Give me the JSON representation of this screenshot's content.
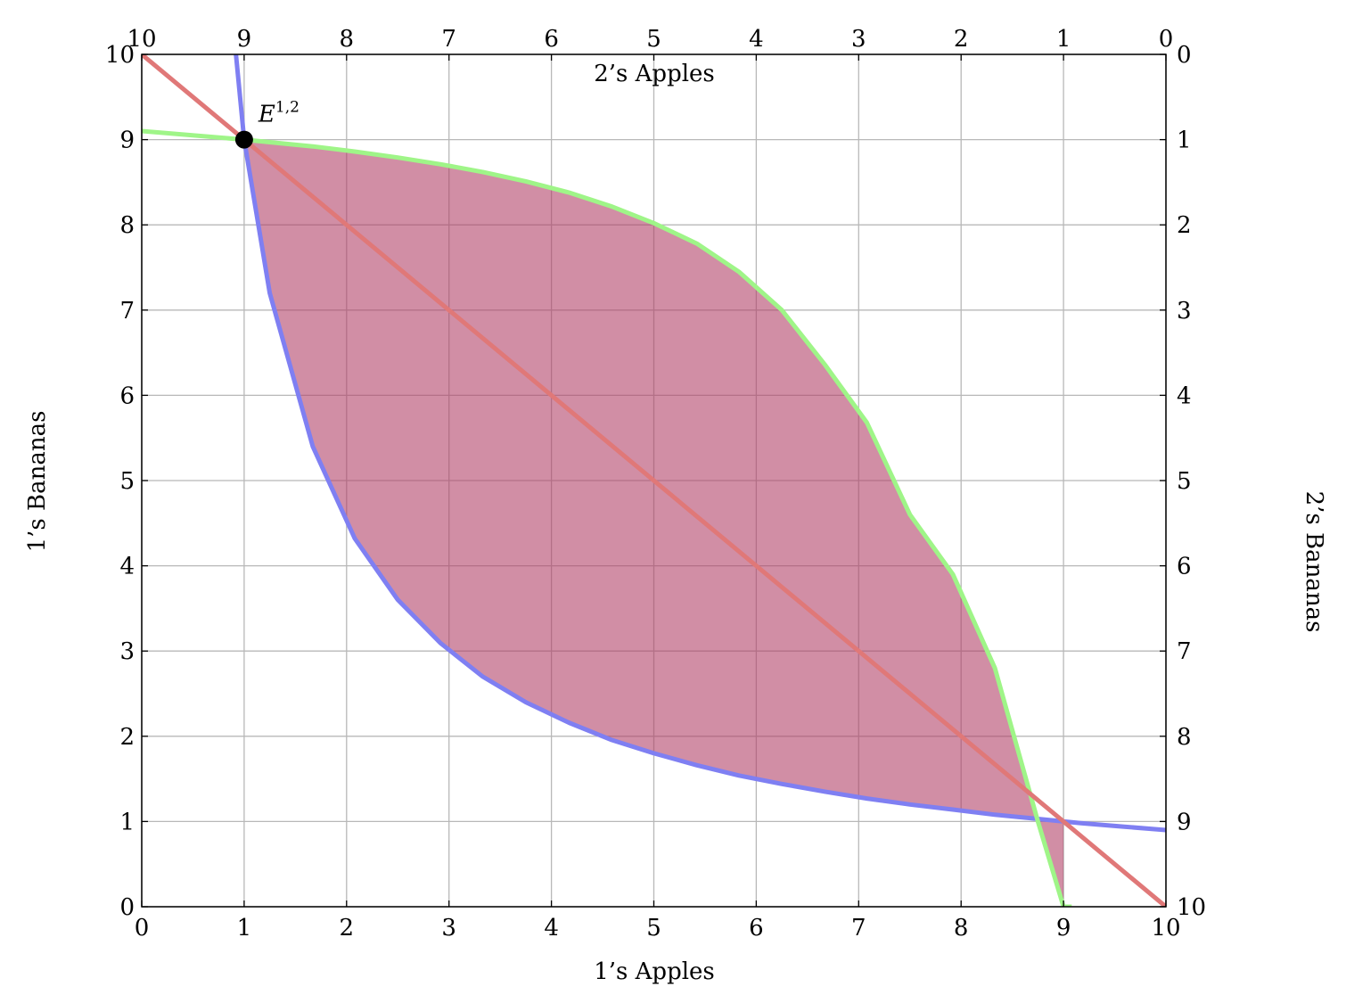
{
  "chart_data": {
    "type": "line",
    "title": "",
    "x_bottom": {
      "label": "1’s Apples",
      "range": [
        0,
        10
      ],
      "ticks": [
        0,
        1,
        2,
        3,
        4,
        5,
        6,
        7,
        8,
        9,
        10
      ]
    },
    "y_left": {
      "label": "1’s Bananas",
      "range": [
        0,
        10
      ],
      "ticks": [
        0,
        1,
        2,
        3,
        4,
        5,
        6,
        7,
        8,
        9,
        10
      ]
    },
    "x_top": {
      "label": "2’s Apples",
      "range": [
        10,
        0
      ],
      "ticks": [
        10,
        9,
        8,
        7,
        6,
        5,
        4,
        3,
        2,
        1,
        0
      ]
    },
    "y_right": {
      "label": "2’s Bananas",
      "range": [
        0,
        10
      ],
      "ticks": [
        0,
        1,
        2,
        3,
        4,
        5,
        6,
        7,
        8,
        9,
        10
      ]
    },
    "grid": true,
    "series": [
      {
        "color": "#7f7ff2",
        "x": [
          0.92,
          1.0,
          1.25,
          1.67,
          2.08,
          2.5,
          2.92,
          3.33,
          3.75,
          4.17,
          4.58,
          5.0,
          5.42,
          5.83,
          6.25,
          6.67,
          7.08,
          7.5,
          7.92,
          8.33,
          8.75,
          9.17,
          9.58,
          10.0
        ],
        "y": [
          10.0,
          9.0,
          7.2,
          5.4,
          4.32,
          3.6,
          3.09,
          2.7,
          2.4,
          2.16,
          1.96,
          1.8,
          1.66,
          1.54,
          1.44,
          1.35,
          1.27,
          1.2,
          1.14,
          1.08,
          1.03,
          0.98,
          0.94,
          0.9
        ]
      },
      {
        "color": "#9ff588",
        "x": [
          0.0,
          1.0,
          1.25,
          1.67,
          2.08,
          2.5,
          2.92,
          3.33,
          3.75,
          4.17,
          4.58,
          5.0,
          5.42,
          5.83,
          6.25,
          6.67,
          7.08,
          7.5,
          7.92,
          8.33,
          8.75,
          9.0,
          9.08
        ],
        "y": [
          9.1,
          9.0,
          8.97,
          8.92,
          8.86,
          8.79,
          8.71,
          8.62,
          8.51,
          8.38,
          8.22,
          8.02,
          7.78,
          7.45,
          7.0,
          6.36,
          5.68,
          4.6,
          3.9,
          2.8,
          1.0,
          0.0,
          0.0
        ]
      },
      {
        "color": "#e07878",
        "x": [
          0,
          10
        ],
        "y": [
          10,
          0
        ]
      }
    ],
    "shaded_region": {
      "color": "#b03c64",
      "between": [
        "blue curve",
        "green curve"
      ],
      "x_range": [
        1,
        9
      ]
    },
    "annotations": [
      {
        "x": 1,
        "y": 9,
        "text": "E",
        "superscript": "1,2",
        "marker": "filled-circle",
        "color": "#000000"
      }
    ]
  }
}
